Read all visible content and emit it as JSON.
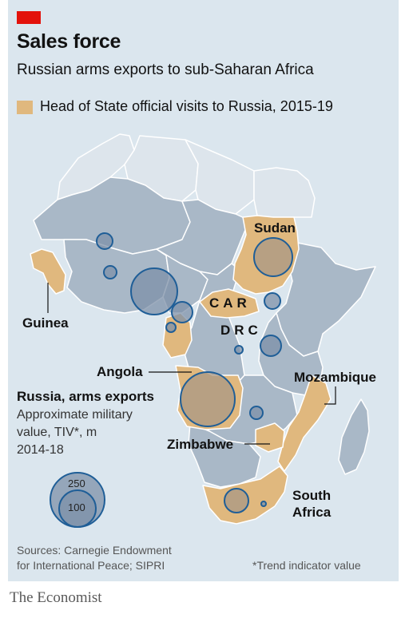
{
  "header": {
    "title": "Sales force",
    "subtitle": "Russian arms exports to sub-Saharan Africa",
    "legend_label": "Head of State official visits to Russia, 2015-19"
  },
  "colors": {
    "accent": "#e3120b",
    "visited": "#e0b87e",
    "country": "#a9b8c7",
    "north_africa": "#dde5ec",
    "bubble_fill": "#7d90a8",
    "bubble_stroke": "#1f5e97",
    "background": "#dbe6ee"
  },
  "labels": {
    "sudan": "Sudan",
    "car": "CAR",
    "drc": "DRC",
    "guinea": "Guinea",
    "angola": "Angola",
    "mozambique": "Mozambique",
    "zimbabwe": "Zimbabwe",
    "south_africa_1": "South",
    "south_africa_2": "Africa"
  },
  "key": {
    "title": "Russia, arms exports",
    "line1": "Approximate military",
    "line2": "value, TIV*, m",
    "line3": "2014-18",
    "large": "250",
    "small": "100"
  },
  "footer": {
    "sources_1": "Sources: Carnegie Endowment",
    "sources_2": "for International Peace; SIPRI",
    "footnote": "*Trend indicator value",
    "publisher": "The Economist"
  }
}
